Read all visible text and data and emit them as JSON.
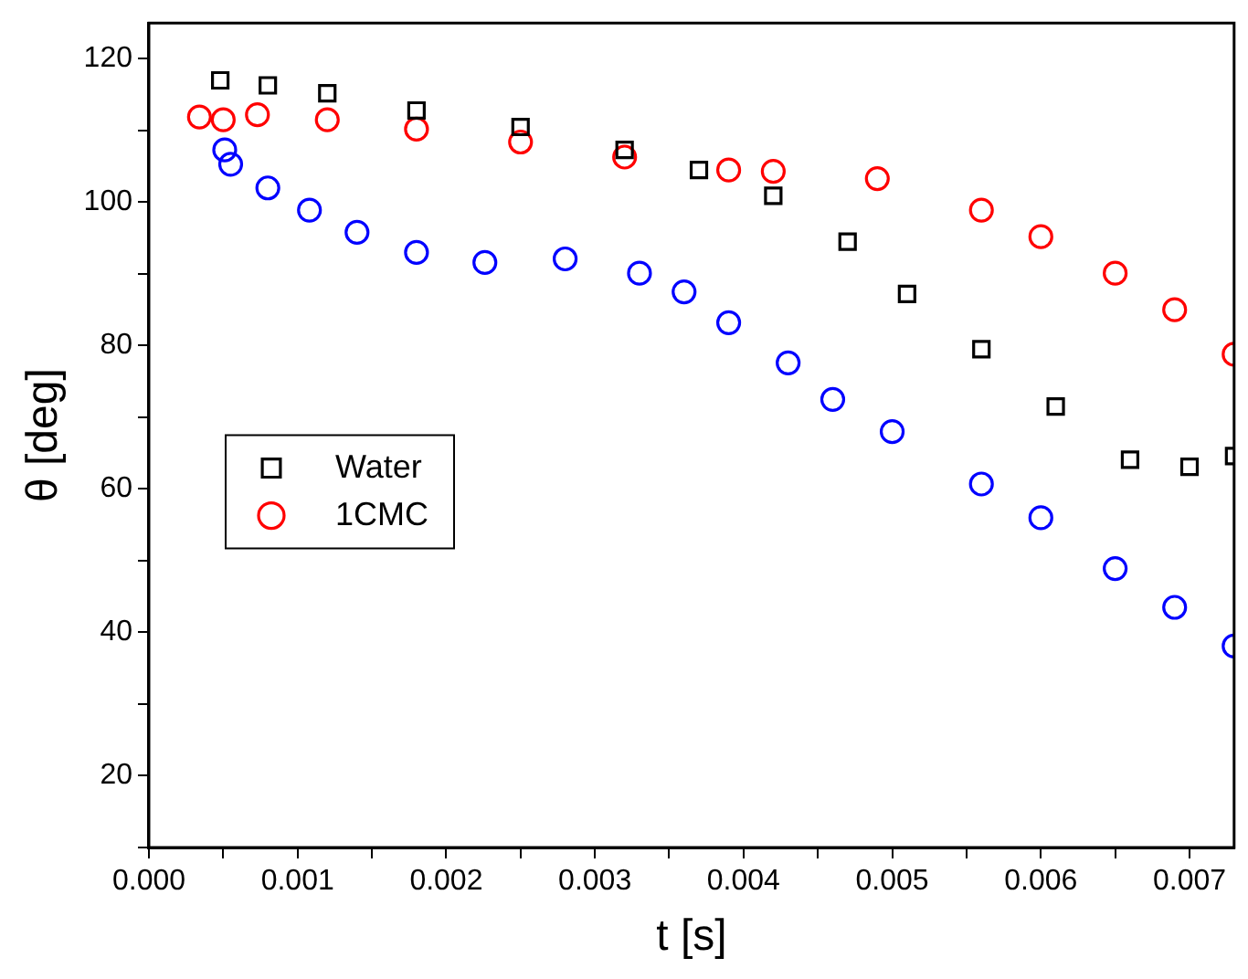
{
  "chart_data": {
    "type": "scatter",
    "xlabel": "t [s]",
    "ylabel": "θ [deg]",
    "xlim": [
      0,
      0.0073
    ],
    "ylim": [
      10,
      125
    ],
    "xticks": [
      {
        "value": 0,
        "label": "0.000"
      },
      {
        "value": 0.0005,
        "label": null
      },
      {
        "value": 0.001,
        "label": "0.001"
      },
      {
        "value": 0.0015,
        "label": null
      },
      {
        "value": 0.002,
        "label": "0.002"
      },
      {
        "value": 0.0025,
        "label": null
      },
      {
        "value": 0.003,
        "label": "0.003"
      },
      {
        "value": 0.0035,
        "label": null
      },
      {
        "value": 0.004,
        "label": "0.004"
      },
      {
        "value": 0.0045,
        "label": null
      },
      {
        "value": 0.005,
        "label": "0.005"
      },
      {
        "value": 0.0055,
        "label": null
      },
      {
        "value": 0.006,
        "label": "0.006"
      },
      {
        "value": 0.0065,
        "label": null
      },
      {
        "value": 0.007,
        "label": "0.007"
      }
    ],
    "yticks": [
      {
        "value": 10,
        "label": null
      },
      20,
      {
        "value": 30,
        "label": null
      },
      40,
      {
        "value": 50,
        "label": null
      },
      60,
      {
        "value": 70,
        "label": null
      },
      80,
      {
        "value": 90,
        "label": null
      },
      100,
      {
        "value": 110,
        "label": null
      },
      120
    ],
    "grid": false,
    "legend": "left",
    "series": [
      {
        "name": "Water",
        "color": "#000000",
        "marker": "square",
        "x": [
          0.00048,
          0.0008,
          0.0012,
          0.0018,
          0.0025,
          0.0032,
          0.0037,
          0.0042,
          0.0047,
          0.0051,
          0.0056,
          0.0061,
          0.0066,
          0.007,
          0.0073
        ],
        "values": [
          117,
          116.3,
          115.2,
          112.8,
          110.5,
          107.3,
          104.5,
          100.9,
          94.5,
          87.2,
          79.5,
          71.5,
          64.1,
          63.1,
          64.6
        ]
      },
      {
        "name": "1CMC",
        "color": "#ff0000",
        "marker": "circle",
        "x": [
          0.00034,
          0.0005,
          0.00073,
          0.0012,
          0.0018,
          0.0025,
          0.0032,
          0.0039,
          0.0042,
          0.0049,
          0.0056,
          0.006,
          0.0065,
          0.0069,
          0.0073
        ],
        "values": [
          111.9,
          111.5,
          112.2,
          111.5,
          110.2,
          108.4,
          106.3,
          104.5,
          104.3,
          103.3,
          98.9,
          95.2,
          90.1,
          85,
          78.8
        ]
      },
      {
        "color": "#0000ff",
        "marker": "circle",
        "x": [
          0.00051,
          0.00055,
          0.0008,
          0.00108,
          0.0014,
          0.0018,
          0.00226,
          0.0028,
          0.0033,
          0.0036,
          0.0039,
          0.0043,
          0.0046,
          0.005,
          0.0056,
          0.006,
          0.0065,
          0.0069,
          0.0073
        ],
        "values": [
          107.3,
          105.3,
          102,
          98.9,
          95.8,
          93,
          91.6,
          92.1,
          90.1,
          87.5,
          83.2,
          77.6,
          72.5,
          68,
          60.7,
          56,
          48.9,
          43.5,
          38.1
        ]
      }
    ]
  }
}
